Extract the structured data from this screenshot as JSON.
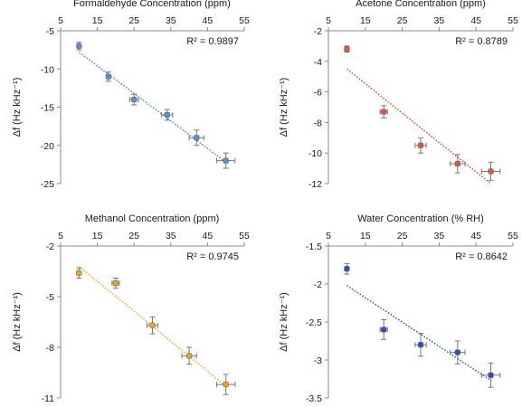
{
  "chart_data": [
    {
      "type": "scatter",
      "title": "Formaldehyde Concentration (ppm)",
      "xlabel": "Formaldehyde Concentration (ppm)",
      "ylabel": "Δf (Hz kHz⁻¹)",
      "x_ticks": [
        "5",
        "15",
        "25",
        "35",
        "45",
        "55"
      ],
      "y_ticks": [
        "-5",
        "-10",
        "-15",
        "-20",
        "-25"
      ],
      "xlim": [
        5,
        55
      ],
      "ylim": [
        -25,
        -5
      ],
      "x_axis_position": "top",
      "grid": false,
      "color": "#5b8fd6",
      "trendline_color": "#4a7fd0",
      "r2_label": "R² = 0.9897",
      "points": [
        {
          "x": 10,
          "y": -7.0,
          "xerr": 0,
          "yerr": 0.5
        },
        {
          "x": 18,
          "y": -11.0,
          "xerr": 0,
          "yerr": 0.6
        },
        {
          "x": 25,
          "y": -14.0,
          "xerr": 1.2,
          "yerr": 0.7
        },
        {
          "x": 34,
          "y": -16.0,
          "xerr": 1.5,
          "yerr": 0.7
        },
        {
          "x": 42,
          "y": -19.0,
          "xerr": 2.0,
          "yerr": 1.0
        },
        {
          "x": 50,
          "y": -22.0,
          "xerr": 2.5,
          "yerr": 1.0
        }
      ],
      "trendline": {
        "x": [
          10,
          50
        ],
        "y": [
          -7.8,
          -22.2
        ]
      }
    },
    {
      "type": "scatter",
      "title": "Acetone Concentration (ppm)",
      "xlabel": "Acetone Concentration (ppm)",
      "ylabel": "Δf (Hz kHz⁻¹)",
      "x_ticks": [
        "5",
        "15",
        "25",
        "35",
        "45",
        "55"
      ],
      "y_ticks": [
        "-2",
        "-4",
        "-6",
        "-8",
        "-10",
        "-12"
      ],
      "xlim": [
        5,
        55
      ],
      "ylim": [
        -12,
        -2
      ],
      "x_axis_position": "top",
      "grid": false,
      "color": "#e2583e",
      "trendline_color": "#e53a2a",
      "r2_label": "R² = 0.8789",
      "points": [
        {
          "x": 10,
          "y": -3.2,
          "xerr": 0,
          "yerr": 0.2
        },
        {
          "x": 20,
          "y": -7.3,
          "xerr": 1.0,
          "yerr": 0.4
        },
        {
          "x": 30,
          "y": -9.5,
          "xerr": 1.5,
          "yerr": 0.5
        },
        {
          "x": 40,
          "y": -10.7,
          "xerr": 2.0,
          "yerr": 0.6
        },
        {
          "x": 49,
          "y": -11.2,
          "xerr": 2.5,
          "yerr": 0.6
        }
      ],
      "trendline": {
        "x": [
          10,
          49
        ],
        "y": [
          -4.5,
          -12.0
        ]
      }
    },
    {
      "type": "scatter",
      "title": "Methanol Concentration (ppm)",
      "xlabel": "Methanol Concentration (ppm)",
      "ylabel": "Δf (Hz kHz⁻¹)",
      "x_ticks": [
        "5",
        "15",
        "25",
        "35",
        "45",
        "55"
      ],
      "y_ticks": [
        "-2",
        "-5",
        "-8",
        "-11"
      ],
      "xlim": [
        5,
        55
      ],
      "ylim": [
        -11,
        -2
      ],
      "x_axis_position": "top",
      "grid": false,
      "color": "#f2a51a",
      "trendline_color": "#f0a01a",
      "r2_label": "R² = 0.9745",
      "points": [
        {
          "x": 10,
          "y": -3.6,
          "xerr": 0,
          "yerr": 0.3
        },
        {
          "x": 20,
          "y": -4.2,
          "xerr": 1.0,
          "yerr": 0.3
        },
        {
          "x": 30,
          "y": -6.7,
          "xerr": 1.5,
          "yerr": 0.5
        },
        {
          "x": 40,
          "y": -8.5,
          "xerr": 2.0,
          "yerr": 0.5
        },
        {
          "x": 50,
          "y": -10.2,
          "xerr": 2.5,
          "yerr": 0.6
        }
      ],
      "trendline": {
        "x": [
          10,
          50
        ],
        "y": [
          -3.2,
          -10.3
        ]
      }
    },
    {
      "type": "scatter",
      "title": "Water Concentration (% RH)",
      "xlabel": "Water Concentration (% RH)",
      "ylabel": "Δf (Hz kHz⁻¹)",
      "x_ticks": [
        "5",
        "15",
        "25",
        "35",
        "45",
        "55"
      ],
      "y_ticks": [
        "-1.5",
        "-2",
        "-2.5",
        "-3",
        "-3.5"
      ],
      "xlim": [
        5,
        55
      ],
      "ylim": [
        -3.5,
        -1.5
      ],
      "x_axis_position": "top",
      "grid": false,
      "color": "#2f4fc7",
      "trendline_color": "#2a48c0",
      "r2_label": "R² = 0.8642",
      "points": [
        {
          "x": 10,
          "y": -1.8,
          "xerr": 0,
          "yerr": 0.07
        },
        {
          "x": 20,
          "y": -2.6,
          "xerr": 1.0,
          "yerr": 0.13
        },
        {
          "x": 30,
          "y": -2.8,
          "xerr": 1.5,
          "yerr": 0.15
        },
        {
          "x": 40,
          "y": -2.9,
          "xerr": 2.0,
          "yerr": 0.15
        },
        {
          "x": 49,
          "y": -3.2,
          "xerr": 2.5,
          "yerr": 0.16
        }
      ],
      "trendline": {
        "x": [
          10,
          49
        ],
        "y": [
          -2.02,
          -3.27
        ]
      }
    }
  ]
}
